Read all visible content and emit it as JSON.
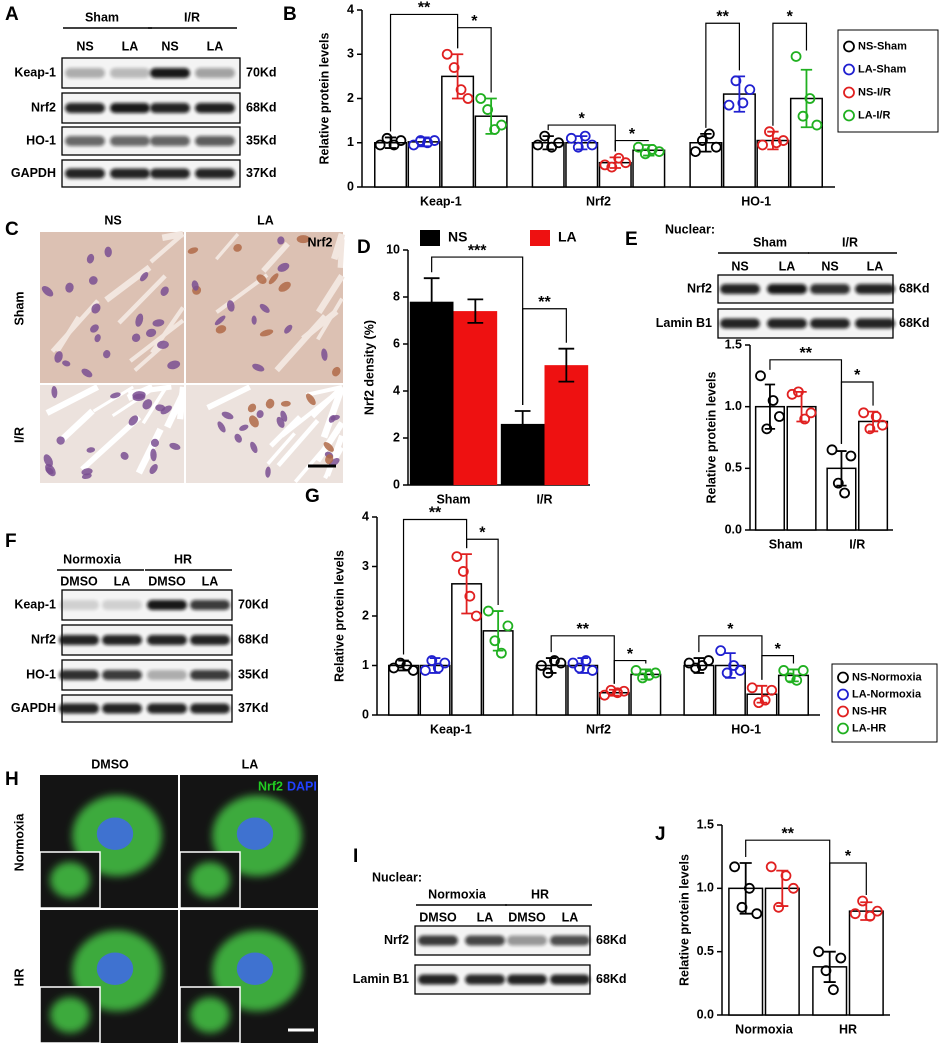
{
  "chart_data": [
    {
      "type": "bar",
      "panel": "B",
      "y_label": "Relative protein levels",
      "categories": [
        "Keap-1",
        "Nrf2",
        "HO-1"
      ],
      "series": [
        {
          "name": "NS-Sham",
          "color": "#000000",
          "values": [
            1.0,
            1.0,
            1.0
          ],
          "errors": [
            0.12,
            0.15,
            0.2
          ],
          "points": [
            [
              0.95,
              1.1,
              0.95,
              1.05
            ],
            [
              0.95,
              1.15,
              0.9,
              1.0
            ],
            [
              0.8,
              1.05,
              1.2,
              0.9
            ]
          ]
        },
        {
          "name": "LA-Sham",
          "color": "#2020d0",
          "values": [
            1.02,
            1.0,
            2.1
          ],
          "errors": [
            0.1,
            0.15,
            0.4
          ],
          "points": [
            [
              0.95,
              1.05,
              1.0,
              1.05
            ],
            [
              1.1,
              0.9,
              1.15,
              0.95
            ],
            [
              1.85,
              2.4,
              1.9,
              2.2
            ]
          ]
        },
        {
          "name": "NS-I/R",
          "color": "#e02020",
          "values": [
            2.5,
            0.55,
            1.05
          ],
          "errors": [
            0.5,
            0.12,
            0.2
          ],
          "points": [
            [
              3.0,
              2.7,
              2.2,
              2.0
            ],
            [
              0.5,
              0.45,
              0.65,
              0.55
            ],
            [
              0.95,
              1.25,
              1.0,
              1.05
            ]
          ]
        },
        {
          "name": "LA-I/R",
          "color": "#20b020",
          "values": [
            1.6,
            0.83,
            2.0
          ],
          "errors": [
            0.4,
            0.12,
            0.65
          ],
          "points": [
            [
              2.0,
              1.75,
              1.3,
              1.4
            ],
            [
              0.9,
              0.75,
              0.85,
              0.8
            ],
            [
              2.95,
              1.6,
              2.0,
              1.4
            ]
          ]
        }
      ],
      "ylim": [
        0,
        4
      ],
      "yticks": [
        0,
        1,
        2,
        3,
        4
      ],
      "legend": "right",
      "bar_style": "outline",
      "annotations": [
        "**",
        "*",
        "*",
        "*",
        "**",
        "*"
      ]
    },
    {
      "type": "bar",
      "panel": "D",
      "y_label": "Nrf2 density (%)",
      "categories": [
        "Sham",
        "I/R"
      ],
      "series": [
        {
          "name": "NS",
          "color": "#000000",
          "values": [
            7.8,
            2.6
          ],
          "errors": [
            1.0,
            0.55
          ]
        },
        {
          "name": "LA",
          "color": "#ee1111",
          "values": [
            7.4,
            5.1
          ],
          "errors": [
            0.5,
            0.7
          ]
        }
      ],
      "ylim": [
        0,
        10
      ],
      "yticks": [
        0,
        2,
        4,
        6,
        8,
        10
      ],
      "legend": "top",
      "bar_style": "filled",
      "annotations": [
        "***",
        "**"
      ]
    },
    {
      "type": "bar",
      "y_label": "Relative protein levels",
      "categories": [
        "Sham",
        "I/R"
      ],
      "series": [
        {
          "color": "#000000",
          "values": [
            1.0,
            0.5
          ],
          "errors": [
            0.18,
            0.14
          ],
          "points": [
            [
              1.25,
              0.82,
              1.05,
              0.92
            ],
            [
              0.65,
              0.38,
              0.3,
              0.6
            ]
          ]
        },
        {
          "color": "#e02020",
          "values": [
            1.0,
            0.88
          ],
          "errors": [
            0.12,
            0.08
          ],
          "points": [
            [
              1.1,
              1.12,
              0.9,
              0.95
            ],
            [
              0.95,
              0.82,
              0.92,
              0.85
            ]
          ]
        }
      ],
      "ylim": [
        0,
        1.5
      ],
      "yticks": [
        {
          "value": 0,
          "label": "0.0"
        },
        0.5,
        {
          "value": 1,
          "label": "1.0"
        },
        1.5
      ],
      "legend": "none",
      "bar_style": "outline",
      "annotations": [
        "**",
        "*"
      ]
    },
    {
      "type": "bar",
      "panel": "G",
      "y_label": "Relative protein levels",
      "categories": [
        "Keap-1",
        "Nrf2",
        "HO-1"
      ],
      "series": [
        {
          "name": "NS-Normoxia",
          "color": "#000000",
          "values": [
            1.0,
            1.0,
            1.0
          ],
          "errors": [
            0.1,
            0.15,
            0.15
          ],
          "points": [
            [
              0.95,
              1.05,
              1.0,
              0.9
            ],
            [
              1.0,
              0.85,
              1.1,
              1.05
            ],
            [
              1.05,
              0.95,
              1.0,
              1.1
            ]
          ]
        },
        {
          "name": "LA-Normoxia",
          "color": "#2020d0",
          "values": [
            1.0,
            1.0,
            1.0
          ],
          "errors": [
            0.15,
            0.15,
            0.25
          ],
          "points": [
            [
              0.9,
              1.1,
              0.95,
              1.05
            ],
            [
              1.05,
              0.95,
              1.1,
              0.9
            ],
            [
              1.3,
              0.85,
              1.0,
              0.9
            ]
          ]
        },
        {
          "name": "NS-HR",
          "color": "#e02020",
          "values": [
            2.65,
            0.45,
            0.42
          ],
          "errors": [
            0.6,
            0.06,
            0.17
          ],
          "points": [
            [
              3.2,
              2.9,
              2.4,
              2.0
            ],
            [
              0.4,
              0.5,
              0.45,
              0.48
            ],
            [
              0.55,
              0.25,
              0.3,
              0.5
            ]
          ]
        },
        {
          "name": "LA-HR",
          "color": "#20b020",
          "values": [
            1.7,
            0.82,
            0.8
          ],
          "errors": [
            0.4,
            0.1,
            0.12
          ],
          "points": [
            [
              2.1,
              1.5,
              1.25,
              1.8
            ],
            [
              0.9,
              0.75,
              0.8,
              0.85
            ],
            [
              0.9,
              0.75,
              0.7,
              0.9
            ]
          ]
        }
      ],
      "ylim": [
        0,
        4
      ],
      "yticks": [
        0,
        1,
        2,
        3,
        4
      ],
      "legend": "right",
      "bar_style": "outline",
      "annotations": [
        "**",
        "*",
        "**",
        "*",
        "*",
        "*"
      ]
    },
    {
      "type": "bar",
      "panel": "J",
      "y_label": "Relative protein levels",
      "categories": [
        "Normoxia",
        "HR"
      ],
      "series": [
        {
          "color": "#000000",
          "values": [
            1.0,
            0.38
          ],
          "errors": [
            0.2,
            0.12
          ],
          "points": [
            [
              1.17,
              0.85,
              1.0,
              0.8
            ],
            [
              0.5,
              0.35,
              0.2,
              0.45
            ]
          ]
        },
        {
          "color": "#e02020",
          "values": [
            1.0,
            0.82
          ],
          "errors": [
            0.14,
            0.07
          ],
          "points": [
            [
              1.17,
              0.85,
              1.1,
              1.0
            ],
            [
              0.8,
              0.9,
              0.78,
              0.82
            ]
          ]
        }
      ],
      "ylim": [
        0,
        1.5
      ],
      "yticks": [
        {
          "value": 0,
          "label": "0.0"
        },
        0.5,
        {
          "value": 1,
          "label": "1.0"
        },
        1.5
      ],
      "legend": "none",
      "bar_style": "outline",
      "annotations": [
        "**",
        "*"
      ]
    }
  ],
  "blots": [
    {
      "panel": "A",
      "groups": [
        "Sham",
        "I/R"
      ],
      "lanes": [
        "NS",
        "LA",
        "NS",
        "LA"
      ],
      "rows": [
        {
          "protein": "Keap-1",
          "size": "70Kd"
        },
        {
          "protein": "Nrf2",
          "size": "68Kd"
        },
        {
          "protein": "HO-1",
          "size": "35Kd"
        },
        {
          "protein": "GAPDH",
          "size": "37Kd"
        }
      ]
    },
    {
      "panel": "E",
      "header": "Nuclear:",
      "groups": [
        "Sham",
        "I/R"
      ],
      "lanes": [
        "NS",
        "LA",
        "NS",
        "LA"
      ],
      "rows": [
        {
          "protein": "Nrf2",
          "size": "68Kd"
        },
        {
          "protein": "Lamin B1",
          "size": "68Kd"
        }
      ]
    },
    {
      "panel": "F",
      "groups": [
        "Normoxia",
        "HR"
      ],
      "lanes": [
        "DMSO",
        "LA",
        "DMSO",
        "LA"
      ],
      "rows": [
        {
          "protein": "Keap-1",
          "size": "70Kd"
        },
        {
          "protein": "Nrf2",
          "size": "68Kd"
        },
        {
          "protein": "HO-1",
          "size": "35Kd"
        },
        {
          "protein": "GAPDH",
          "size": "37Kd"
        }
      ]
    },
    {
      "panel": "I",
      "header": "Nuclear:",
      "groups": [
        "Normoxia",
        "HR"
      ],
      "lanes": [
        "DMSO",
        "LA",
        "DMSO",
        "LA"
      ],
      "rows": [
        {
          "protein": "Nrf2",
          "size": "68Kd"
        },
        {
          "protein": "Lamin B1",
          "size": "68Kd"
        }
      ]
    }
  ],
  "images": [
    {
      "panel": "C",
      "columns": [
        "NS",
        "LA"
      ],
      "rows": [
        "Sham",
        "I/R"
      ],
      "stains": [
        {
          "name": "Nrf2",
          "color": "#000000"
        }
      ]
    },
    {
      "panel": "H",
      "columns": [
        "DMSO",
        "LA"
      ],
      "rows": [
        "Normoxia",
        "HR"
      ],
      "stains": [
        {
          "name": "Nrf2",
          "color": "#22cc22"
        },
        {
          "name": "DAPI",
          "color": "#2040ff"
        }
      ]
    }
  ]
}
